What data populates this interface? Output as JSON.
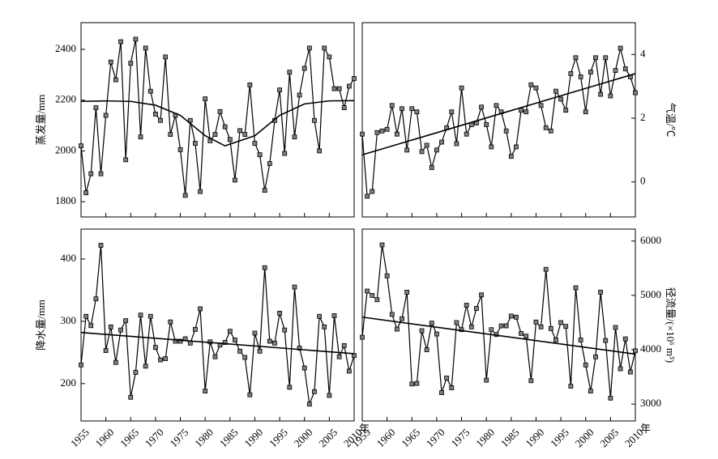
{
  "chart_data": [
    {
      "type": "line",
      "ylabel": "蒸发量/mm",
      "yaxis": "left",
      "xlim": [
        1955,
        2010
      ],
      "ylim": [
        1740,
        2505
      ],
      "xticks": [
        1955,
        1960,
        1965,
        1970,
        1975,
        1980,
        1985,
        1990,
        1995,
        2000,
        2005,
        2010
      ],
      "yticks": [
        1800,
        2000,
        2200,
        2400
      ],
      "x": [
        1955,
        1956,
        1957,
        1958,
        1959,
        1960,
        1961,
        1962,
        1963,
        1964,
        1965,
        1966,
        1967,
        1968,
        1969,
        1970,
        1971,
        1972,
        1973,
        1974,
        1975,
        1976,
        1977,
        1978,
        1979,
        1980,
        1981,
        1982,
        1983,
        1984,
        1985,
        1986,
        1987,
        1988,
        1989,
        1990,
        1991,
        1992,
        1993,
        1994,
        1995,
        1996,
        1997,
        1998,
        1999,
        2000,
        2001,
        2002,
        2003,
        2004,
        2005,
        2006,
        2007,
        2008,
        2009,
        2010
      ],
      "series": [
        {
          "color": "#000000",
          "marker_color": "#808080",
          "values": [
            2020,
            1835,
            1910,
            2170,
            1910,
            2140,
            2350,
            2280,
            2430,
            1965,
            2345,
            2440,
            2055,
            2405,
            2235,
            2145,
            2120,
            2370,
            2065,
            2140,
            2005,
            1825,
            2120,
            2030,
            1840,
            2205,
            2040,
            2065,
            2155,
            2095,
            2045,
            1885,
            2080,
            2065,
            2260,
            2030,
            1985,
            1845,
            1950,
            2120,
            2240,
            1990,
            2310,
            2055,
            2220,
            2325,
            2405,
            2120,
            2000,
            2405,
            2370,
            2245,
            2245,
            2170,
            2255,
            2285
          ]
        },
        {
          "color": "#000000",
          "x": [
            1955,
            1960,
            1965,
            1970,
            1975,
            1980,
            1984,
            1990,
            1995,
            2000,
            2005,
            2010
          ],
          "values": [
            2195,
            2197,
            2195,
            2180,
            2140,
            2060,
            2020,
            2060,
            2140,
            2185,
            2197,
            2198
          ]
        }
      ]
    },
    {
      "type": "line",
      "ylabel": "气温/℃",
      "yaxis": "right",
      "xlim": [
        1955,
        2010
      ],
      "ylim": [
        -1.1,
        5.0
      ],
      "xticks": [
        1955,
        1960,
        1965,
        1970,
        1975,
        1980,
        1985,
        1990,
        1995,
        2000,
        2005,
        2010
      ],
      "yticks": [
        0,
        2,
        4
      ],
      "x": [
        1955,
        1956,
        1957,
        1958,
        1959,
        1960,
        1961,
        1962,
        1963,
        1964,
        1965,
        1966,
        1967,
        1968,
        1969,
        1970,
        1971,
        1972,
        1973,
        1974,
        1975,
        1976,
        1977,
        1978,
        1979,
        1980,
        1981,
        1982,
        1983,
        1984,
        1985,
        1986,
        1987,
        1988,
        1989,
        1990,
        1991,
        1992,
        1993,
        1994,
        1995,
        1996,
        1997,
        1998,
        1999,
        2000,
        2001,
        2002,
        2003,
        2004,
        2005,
        2006,
        2007,
        2008,
        2009,
        2010
      ],
      "series": [
        {
          "color": "#000000",
          "marker_color": "#808080",
          "values": [
            1.5,
            -0.45,
            -0.3,
            1.55,
            1.6,
            1.65,
            2.4,
            1.5,
            2.3,
            1.0,
            2.3,
            2.2,
            0.95,
            1.15,
            0.45,
            1.0,
            1.25,
            1.7,
            2.2,
            1.2,
            2.95,
            1.5,
            1.8,
            1.85,
            2.35,
            1.8,
            1.1,
            2.4,
            2.2,
            1.6,
            0.8,
            1.1,
            2.25,
            2.2,
            3.05,
            2.95,
            2.4,
            1.7,
            1.6,
            2.85,
            2.6,
            2.25,
            3.4,
            3.9,
            3.3,
            2.2,
            3.45,
            3.9,
            2.75,
            3.9,
            2.7,
            3.5,
            4.2,
            3.55,
            3.3,
            2.8
          ]
        },
        {
          "color": "#000000",
          "x": [
            1955,
            2010
          ],
          "values": [
            0.85,
            3.4
          ]
        }
      ]
    },
    {
      "type": "line",
      "ylabel": "降水量/mm",
      "yaxis": "left",
      "xlabel": "年",
      "xlim": [
        1955,
        2010
      ],
      "ylim": [
        140,
        448
      ],
      "xticks": [
        1955,
        1960,
        1965,
        1970,
        1975,
        1980,
        1985,
        1990,
        1995,
        2000,
        2005,
        2010
      ],
      "yticks": [
        200,
        300,
        400
      ],
      "x": [
        1955,
        1956,
        1957,
        1958,
        1959,
        1960,
        1961,
        1962,
        1963,
        1964,
        1965,
        1966,
        1967,
        1968,
        1969,
        1970,
        1971,
        1972,
        1973,
        1974,
        1975,
        1976,
        1977,
        1978,
        1979,
        1980,
        1981,
        1982,
        1983,
        1984,
        1985,
        1986,
        1987,
        1988,
        1989,
        1990,
        1991,
        1992,
        1993,
        1994,
        1995,
        1996,
        1997,
        1998,
        1999,
        2000,
        2001,
        2002,
        2003,
        2004,
        2005,
        2006,
        2007,
        2008,
        2009,
        2010
      ],
      "series": [
        {
          "color": "#000000",
          "marker_color": "#808080",
          "values": [
            230,
            308,
            293,
            336,
            422,
            253,
            291,
            234,
            286,
            301,
            178,
            218,
            310,
            228,
            308,
            258,
            238,
            240,
            299,
            268,
            268,
            272,
            265,
            287,
            320,
            188,
            267,
            243,
            262,
            266,
            284,
            270,
            252,
            242,
            182,
            281,
            252,
            386,
            268,
            265,
            313,
            286,
            194,
            355,
            257,
            225,
            167,
            187,
            308,
            291,
            181,
            309,
            243,
            261,
            220,
            245
          ]
        },
        {
          "color": "#000000",
          "x": [
            1955,
            2010
          ],
          "values": [
            282,
            248
          ]
        }
      ]
    },
    {
      "type": "line",
      "ylabel": "径流量/(×10⁶ m³)",
      "yaxis": "right",
      "xlabel": "年",
      "xlim": [
        1955,
        2010
      ],
      "ylim": [
        2690,
        6220
      ],
      "xticks": [
        1955,
        1960,
        1965,
        1970,
        1975,
        1980,
        1985,
        1990,
        1995,
        2000,
        2005,
        2010
      ],
      "yticks": [
        3000,
        4000,
        5000,
        6000
      ],
      "x": [
        1955,
        1956,
        1957,
        1958,
        1959,
        1960,
        1961,
        1962,
        1963,
        1964,
        1965,
        1966,
        1967,
        1968,
        1969,
        1970,
        1971,
        1972,
        1973,
        1974,
        1975,
        1976,
        1977,
        1978,
        1979,
        1980,
        1981,
        1982,
        1983,
        1984,
        1985,
        1986,
        1987,
        1988,
        1989,
        1990,
        1991,
        1992,
        1993,
        1994,
        1995,
        1996,
        1997,
        1998,
        1999,
        2000,
        2001,
        2002,
        2003,
        2004,
        2005,
        2006,
        2007,
        2008,
        2009,
        2010
      ],
      "series": [
        {
          "color": "#000000",
          "marker_color": "#808080",
          "values": [
            4230,
            5080,
            5000,
            4920,
            5930,
            5360,
            4650,
            4380,
            4570,
            5060,
            3370,
            3380,
            4350,
            4000,
            4490,
            4290,
            3210,
            3480,
            3300,
            4500,
            4370,
            4820,
            4420,
            4760,
            5010,
            3440,
            4370,
            4280,
            4440,
            4440,
            4620,
            4600,
            4300,
            4250,
            3430,
            4510,
            4420,
            5480,
            4390,
            4180,
            4500,
            4430,
            3330,
            5140,
            4180,
            3720,
            3240,
            3870,
            5060,
            4170,
            3110,
            4410,
            3650,
            4200,
            3590,
            3980
          ]
        },
        {
          "color": "#000000",
          "x": [
            1955,
            2010
          ],
          "values": [
            4600,
            3920
          ]
        }
      ]
    }
  ]
}
